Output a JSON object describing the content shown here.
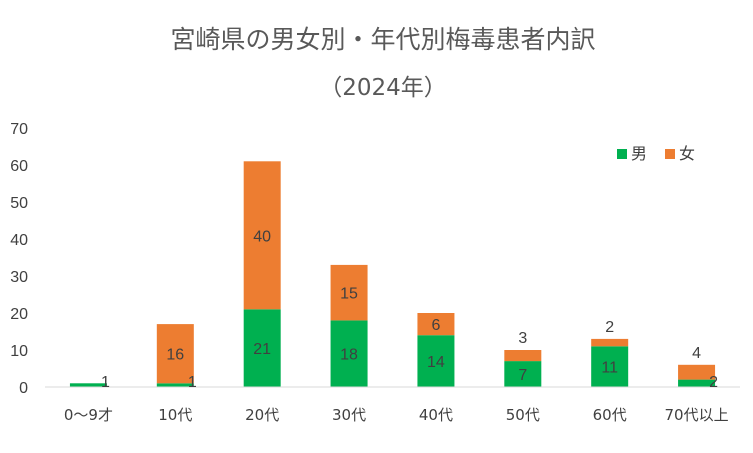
{
  "chart_data": {
    "type": "bar",
    "stacked": true,
    "title": "宮崎県の男女別・年代別梅毒患者内訳",
    "subtitle": "（2024年）",
    "categories": [
      "0～9才",
      "10代",
      "20代",
      "30代",
      "40代",
      "50代",
      "60代",
      "70代以上"
    ],
    "series": [
      {
        "name": "男",
        "color": "#00b050",
        "values": [
          1,
          1,
          21,
          18,
          14,
          7,
          11,
          2
        ]
      },
      {
        "name": "女",
        "color": "#ed7d31",
        "values": [
          0,
          16,
          40,
          15,
          6,
          3,
          2,
          4
        ]
      }
    ],
    "ylim": [
      0,
      70
    ],
    "yticks": [
      0,
      10,
      20,
      30,
      40,
      50,
      60,
      70
    ],
    "grid": false,
    "legend": "top-right"
  }
}
